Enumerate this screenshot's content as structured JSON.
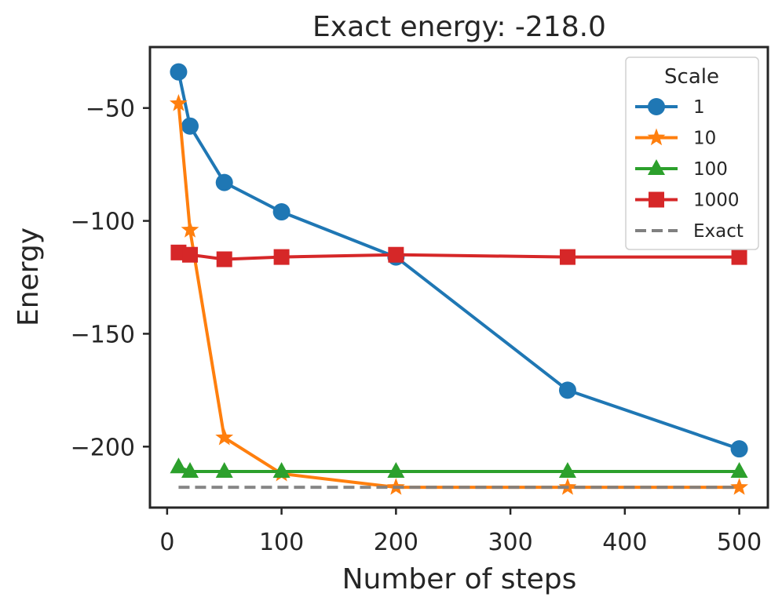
{
  "chart_data": {
    "type": "line",
    "title": "Exact energy: -218.0",
    "xlabel": "Number of steps",
    "ylabel": "Energy",
    "x": [
      10,
      20,
      50,
      100,
      200,
      350,
      500
    ],
    "xlim": [
      -15,
      525
    ],
    "ylim": [
      -227,
      -23
    ],
    "xticks": [
      0,
      100,
      200,
      300,
      400,
      500
    ],
    "yticks": [
      -50,
      -100,
      -150,
      -200
    ],
    "xtick_labels": [
      "0",
      "100",
      "200",
      "300",
      "400",
      "500"
    ],
    "ytick_labels": [
      "−50",
      "−100",
      "−150",
      "−200"
    ],
    "grid": false,
    "legend": {
      "title": "Scale",
      "position": "upper right"
    },
    "series": [
      {
        "name": "1",
        "color": "#1f77b4",
        "marker": "circle",
        "values": [
          -34,
          -58,
          -83,
          -96,
          -116,
          -175,
          -201
        ]
      },
      {
        "name": "10",
        "color": "#ff7f0e",
        "marker": "star",
        "values": [
          -48,
          -104,
          -196,
          -212,
          -218,
          -218,
          -218
        ]
      },
      {
        "name": "100",
        "color": "#2ca02c",
        "marker": "triangle",
        "values": [
          -209,
          -211,
          -211,
          -211,
          -211,
          -211,
          -211
        ]
      },
      {
        "name": "1000",
        "color": "#d62728",
        "marker": "square",
        "values": [
          -114,
          -115,
          -117,
          -116,
          -115,
          -116,
          -116
        ]
      }
    ],
    "reference": {
      "name": "Exact",
      "color": "#808080",
      "style": "dashed",
      "value": -218.0,
      "x_range": [
        10,
        500
      ]
    }
  }
}
